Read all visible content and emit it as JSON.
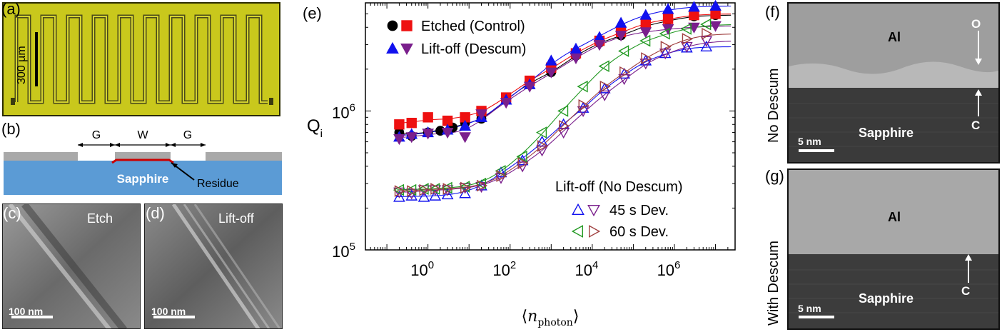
{
  "panels": {
    "a": "(a)",
    "b": "(b)",
    "c": "(c)",
    "d": "(d)",
    "e": "(e)",
    "f": "(f)",
    "g": "(g)"
  },
  "panel_a": {
    "scalebar": "300 µm"
  },
  "panel_b": {
    "gap1": "G",
    "width": "W",
    "gap2": "G",
    "substrate": "Sapphire",
    "residue": "Residue",
    "residue_color": "#cc0000",
    "substrate_color": "#5b9bd5"
  },
  "panel_c": {
    "title": "Etch",
    "scalebar": "100 nm"
  },
  "panel_d": {
    "title": "Lift-off",
    "scalebar": "100 nm"
  },
  "panel_f": {
    "side": "No Descum",
    "top": "Al",
    "bottom": "Sapphire",
    "o_mark": "O",
    "c_mark": "C",
    "scalebar": "5 nm"
  },
  "panel_g": {
    "side": "With Descum",
    "top": "Al",
    "bottom": "Sapphire",
    "c_mark": "C",
    "scalebar": "5 nm"
  },
  "chart_data": {
    "type": "scatter",
    "xscale": "log",
    "yscale": "log",
    "xlim": [
      0.03,
      30000000
    ],
    "ylim": [
      100000,
      6000000
    ],
    "ylabel": "Q",
    "ylabel_sub": "i",
    "xlabel_open": "⟨",
    "xlabel_var": "n",
    "xlabel_sub": "photon",
    "xlabel_close": "⟩",
    "x_ticks": [
      {
        "value": 1,
        "base": "10",
        "exp": "0"
      },
      {
        "value": 100,
        "base": "10",
        "exp": "2"
      },
      {
        "value": 10000,
        "base": "10",
        "exp": "4"
      },
      {
        "value": 1000000,
        "base": "10",
        "exp": "6"
      }
    ],
    "y_ticks": [
      {
        "value": 100000,
        "base": "10",
        "exp": "5"
      },
      {
        "value": 1000000,
        "base": "10",
        "exp": "6"
      }
    ],
    "legend_top": [
      {
        "label": "Etched (Control)"
      },
      {
        "label": "Lift-off (Descum)"
      }
    ],
    "legend_bottom_title": "Lift-off (No Descum)",
    "legend_bottom": [
      {
        "label": "45 s Dev."
      },
      {
        "label": "60 s Dev."
      }
    ],
    "series": [
      {
        "marker": "circle",
        "color": "#000000",
        "fill": true,
        "x": [
          0.2,
          0.4,
          1,
          2,
          4,
          8,
          20,
          80,
          300,
          1000,
          4000,
          15000,
          50000,
          200000,
          700000,
          3000000,
          10000000
        ],
        "y": [
          700000,
          660000,
          700000,
          720000,
          760000,
          820000,
          880000,
          1200000,
          1600000,
          1900000,
          2500000,
          3100000,
          3500000,
          4100000,
          4500000,
          4800000,
          4900000
        ]
      },
      {
        "marker": "square",
        "color": "#ee1111",
        "fill": true,
        "x": [
          0.2,
          0.4,
          1,
          3,
          8,
          20,
          80,
          300,
          1000,
          4000,
          15000,
          50000,
          200000,
          700000,
          3000000,
          10000000
        ],
        "y": [
          800000,
          820000,
          900000,
          850000,
          900000,
          1000000,
          1250000,
          1650000,
          2050000,
          2600000,
          3200000,
          3700000,
          4300000,
          4600000,
          4900000,
          5000000
        ]
      },
      {
        "marker": "triangle-up",
        "color": "#1111ee",
        "fill": true,
        "x": [
          0.2,
          0.4,
          1,
          3,
          8,
          20,
          80,
          300,
          1000,
          4000,
          15000,
          50000,
          200000,
          700000,
          3000000,
          10000000
        ],
        "y": [
          650000,
          680000,
          700000,
          730000,
          780000,
          900000,
          1200000,
          1550000,
          2300000,
          2800000,
          3400000,
          4300000,
          4900000,
          5400000,
          5600000,
          5700000
        ]
      },
      {
        "marker": "triangle-down",
        "color": "#7a1f8c",
        "fill": true,
        "x": [
          0.2,
          0.4,
          1,
          3,
          8,
          20,
          80,
          300,
          1000,
          4000,
          15000,
          50000,
          200000,
          700000,
          3000000,
          10000000
        ],
        "y": [
          630000,
          650000,
          690000,
          700000,
          650000,
          950000,
          1150000,
          1500000,
          1900000,
          2400000,
          3000000,
          3500000,
          3700000,
          3900000,
          4000000,
          4100000
        ]
      },
      {
        "marker": "triangle-up",
        "color": "#1111ee",
        "fill": false,
        "x": [
          0.2,
          0.4,
          0.8,
          1.5,
          3,
          8,
          20,
          60,
          200,
          600,
          2000,
          6000,
          20000,
          60000,
          200000,
          600000,
          2000000,
          6000000
        ],
        "y": [
          240000,
          245000,
          240000,
          245000,
          250000,
          255000,
          290000,
          360000,
          440000,
          600000,
          800000,
          1050000,
          1450000,
          1850000,
          2300000,
          2600000,
          2850000,
          2900000
        ]
      },
      {
        "marker": "triangle-down",
        "color": "#7a1f8c",
        "fill": false,
        "x": [
          0.2,
          0.4,
          0.8,
          1.5,
          3,
          8,
          20,
          60,
          200,
          600,
          2000,
          6000,
          20000,
          60000,
          200000,
          600000,
          2000000,
          6000000
        ],
        "y": [
          260000,
          255000,
          270000,
          270000,
          270000,
          280000,
          285000,
          330000,
          400000,
          520000,
          700000,
          1000000,
          1300000,
          1700000,
          2200000,
          2600000,
          2900000,
          3200000
        ]
      },
      {
        "marker": "triangle-left",
        "color": "#229922",
        "fill": false,
        "x": [
          0.2,
          0.4,
          0.8,
          1.5,
          3,
          8,
          20,
          60,
          200,
          600,
          2000,
          6000,
          20000,
          60000,
          200000,
          600000,
          2000000,
          6000000
        ],
        "y": [
          270000,
          270000,
          275000,
          275000,
          280000,
          285000,
          300000,
          370000,
          470000,
          700000,
          1000000,
          1500000,
          2100000,
          2700000,
          3200000,
          3600000,
          3900000,
          4200000
        ]
      },
      {
        "marker": "triangle-right",
        "color": "#a04040",
        "fill": false,
        "x": [
          0.2,
          0.4,
          0.8,
          1.5,
          3,
          8,
          20,
          60,
          200,
          600,
          2000,
          6000,
          20000,
          60000,
          200000,
          600000,
          2000000,
          6000000
        ],
        "y": [
          265000,
          265000,
          270000,
          275000,
          275000,
          280000,
          290000,
          340000,
          420000,
          560000,
          780000,
          1100000,
          1500000,
          1900000,
          2400000,
          2900000,
          3300000,
          3600000
        ]
      }
    ]
  }
}
